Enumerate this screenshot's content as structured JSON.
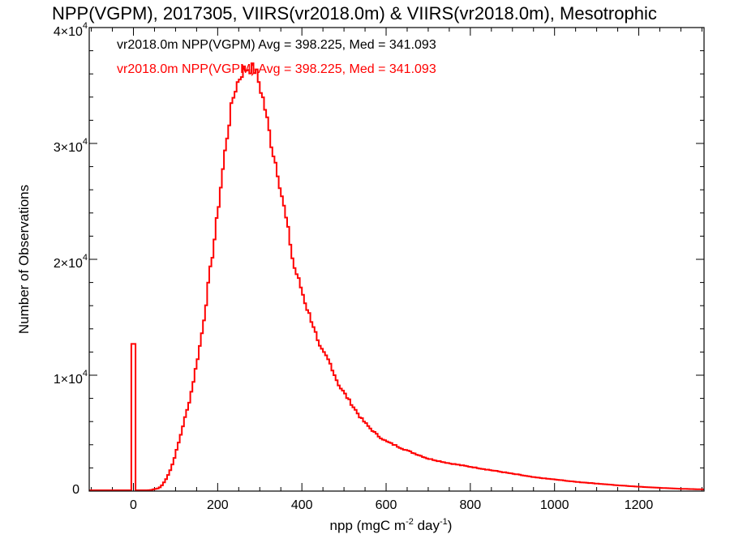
{
  "chart_data": {
    "type": "histogram-step",
    "title": "NPP(VGPM), 2017305, VIIRS(vr2018.0m) & VIIRS(vr2018.0m), Mesotrophic",
    "xlabel": {
      "base": "npp (mgC m",
      "exp1": "-2",
      "mid": " day",
      "exp2": "-1",
      "end": ")"
    },
    "ylabel": "Number of Observations",
    "xlim": [
      -105,
      1355
    ],
    "ylim": [
      0,
      40000
    ],
    "x_ticks": [
      0,
      200,
      400,
      600,
      800,
      1000,
      1200
    ],
    "x_tick_labels": [
      "0",
      "200",
      "400",
      "600",
      "800",
      "1000",
      "1200"
    ],
    "x_minor_step": 50,
    "y_ticks": [
      {
        "value": 0,
        "label": "0",
        "mant": "",
        "exp": ""
      },
      {
        "value": 10000,
        "label": "",
        "mant": "1×10",
        "exp": "4"
      },
      {
        "value": 20000,
        "label": "",
        "mant": "2×10",
        "exp": "4"
      },
      {
        "value": 30000,
        "label": "",
        "mant": "3×10",
        "exp": "4"
      },
      {
        "value": 40000,
        "label": "",
        "mant": "4×10",
        "exp": "4"
      }
    ],
    "y_minor_step": 2000,
    "legend": [
      {
        "text": "vr2018.0m NPP(VGPM) Avg = 398.225, Med = 341.093",
        "color": "#000000"
      },
      {
        "text": "vr2018.0m NPP(VGPM) Avg = 398.225, Med = 341.093",
        "color": "#ff0000"
      }
    ],
    "legend_position": "top-left",
    "series": [
      {
        "name": "vr2018.0m NPP(VGPM)",
        "color": "#ff0000",
        "bin_width": 5,
        "knots": [
          [
            -100,
            0
          ],
          [
            -5,
            0
          ],
          [
            -4,
            12700
          ],
          [
            1,
            12700
          ],
          [
            2,
            0
          ],
          [
            5,
            30
          ],
          [
            40,
            80
          ],
          [
            60,
            250
          ],
          [
            65,
            400
          ],
          [
            70,
            600
          ],
          [
            80,
            1200
          ],
          [
            90,
            2000
          ],
          [
            100,
            3200
          ],
          [
            110,
            4500
          ],
          [
            120,
            6000
          ],
          [
            130,
            7300
          ],
          [
            140,
            9000
          ],
          [
            150,
            11000
          ],
          [
            160,
            13000
          ],
          [
            170,
            15500
          ],
          [
            180,
            18500
          ],
          [
            190,
            21000
          ],
          [
            200,
            24000
          ],
          [
            210,
            27000
          ],
          [
            220,
            30000
          ],
          [
            230,
            32500
          ],
          [
            240,
            34500
          ],
          [
            250,
            35500
          ],
          [
            260,
            36300
          ],
          [
            270,
            36500
          ],
          [
            280,
            36500
          ],
          [
            290,
            36300
          ],
          [
            300,
            35000
          ],
          [
            310,
            33500
          ],
          [
            320,
            31500
          ],
          [
            330,
            29500
          ],
          [
            340,
            28000
          ],
          [
            350,
            26000
          ],
          [
            360,
            24000
          ],
          [
            370,
            22000
          ],
          [
            380,
            19500
          ],
          [
            390,
            18500
          ],
          [
            400,
            17300
          ],
          [
            410,
            16000
          ],
          [
            420,
            15000
          ],
          [
            430,
            14000
          ],
          [
            440,
            12500
          ],
          [
            450,
            12000
          ],
          [
            460,
            11500
          ],
          [
            470,
            10800
          ],
          [
            480,
            9800
          ],
          [
            490,
            9000
          ],
          [
            500,
            8500
          ],
          [
            520,
            7400
          ],
          [
            540,
            6300
          ],
          [
            560,
            5500
          ],
          [
            580,
            4800
          ],
          [
            600,
            4300
          ],
          [
            650,
            3500
          ],
          [
            700,
            2800
          ],
          [
            750,
            2400
          ],
          [
            800,
            2100
          ],
          [
            850,
            1800
          ],
          [
            900,
            1500
          ],
          [
            950,
            1200
          ],
          [
            1000,
            1000
          ],
          [
            1050,
            800
          ],
          [
            1100,
            650
          ],
          [
            1150,
            500
          ],
          [
            1200,
            380
          ],
          [
            1250,
            280
          ],
          [
            1300,
            200
          ],
          [
            1350,
            150
          ]
        ]
      }
    ]
  }
}
